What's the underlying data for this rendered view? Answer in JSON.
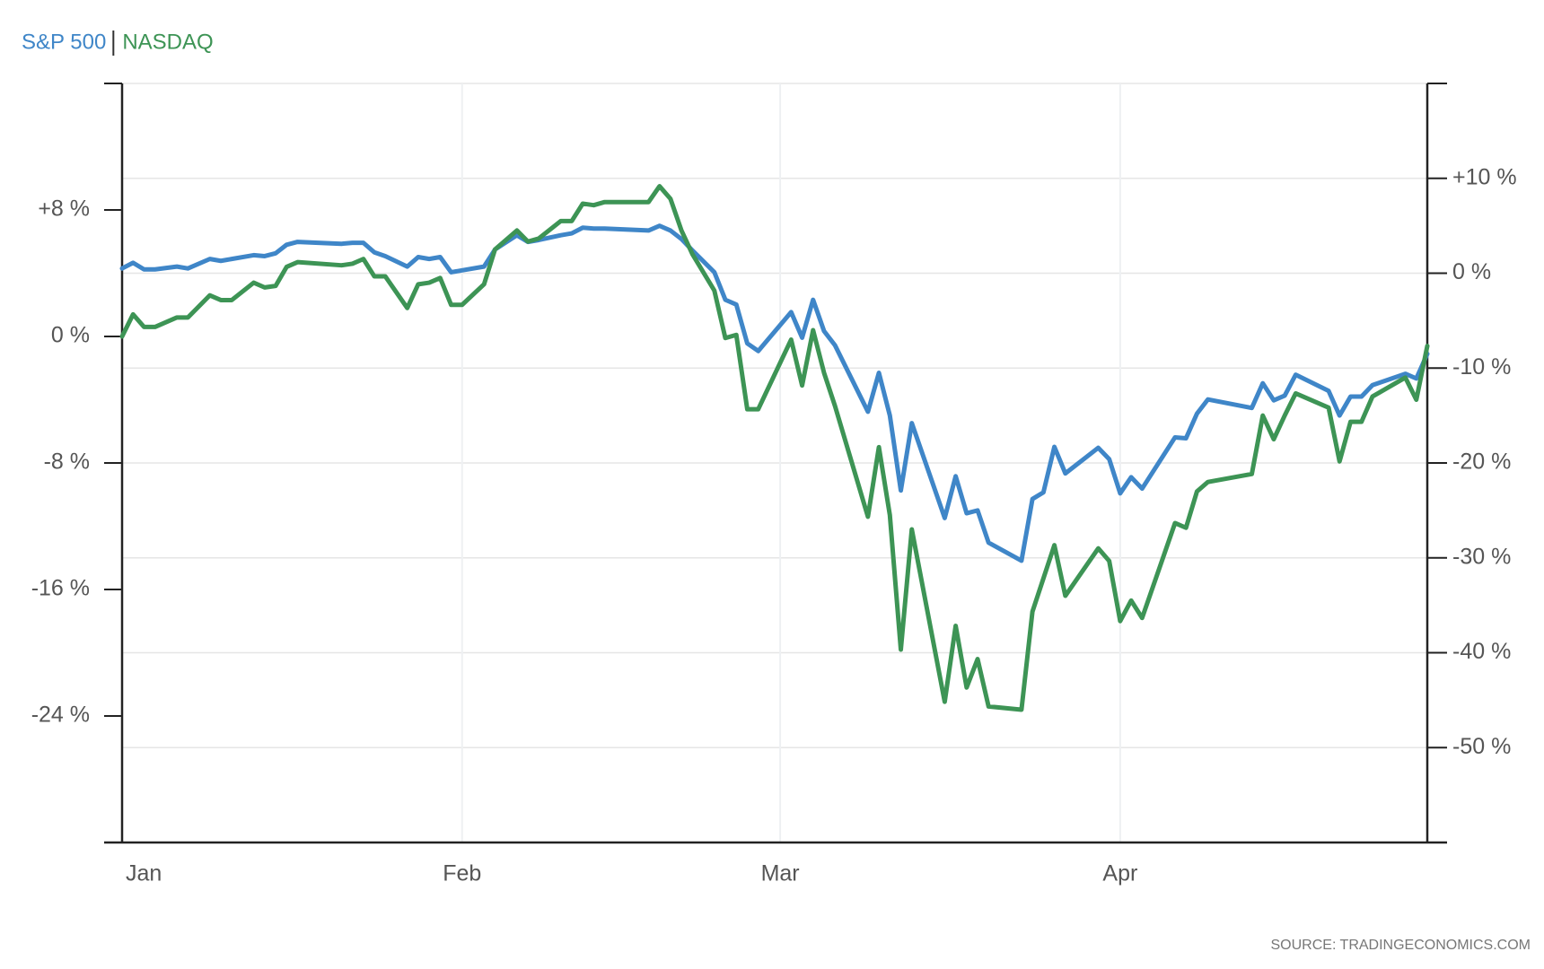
{
  "chart_data": {
    "type": "line",
    "source": "SOURCE: TRADINGECONOMICS.COM",
    "x": [
      0,
      1,
      2,
      3,
      5,
      6,
      8,
      9,
      10,
      12,
      13,
      14,
      15,
      16,
      20,
      21,
      22,
      23,
      24,
      26,
      27,
      28,
      29,
      30,
      31,
      33,
      34,
      36,
      37,
      38,
      40,
      41,
      42,
      43,
      44,
      48,
      49,
      50,
      51,
      52,
      54,
      55,
      56,
      57,
      58,
      61,
      62,
      63,
      64,
      65,
      68,
      69,
      70,
      71,
      72,
      75,
      76,
      77,
      78,
      79,
      82,
      83,
      84,
      85,
      86,
      89,
      90,
      91,
      92,
      93,
      96,
      97,
      98,
      99,
      103,
      104,
      105,
      106,
      107,
      110,
      111,
      112,
      113,
      114,
      117,
      118,
      119
    ],
    "xlim": [
      0,
      119
    ],
    "xticks": [
      {
        "value": 0,
        "label": "Jan"
      },
      {
        "value": 31,
        "label": "Feb"
      },
      {
        "value": 60,
        "label": "Mar"
      },
      {
        "value": 91,
        "label": "Apr"
      }
    ],
    "ylim": [
      -32,
      16
    ],
    "yticks": [
      {
        "value": 8,
        "label": "+8 %"
      },
      {
        "value": 0,
        "label": "0 %"
      },
      {
        "value": -8,
        "label": "-8 %"
      },
      {
        "value": -16,
        "label": "-16 %"
      },
      {
        "value": -24,
        "label": "-24 %"
      }
    ],
    "y2lim": [
      -60,
      20
    ],
    "y2ticks": [
      {
        "value": 10,
        "label": "+10 %"
      },
      {
        "value": 0,
        "label": "0 %"
      },
      {
        "value": -10,
        "label": "-10 %"
      },
      {
        "value": -20,
        "label": "-20 %"
      },
      {
        "value": -30,
        "label": "-30 %"
      },
      {
        "value": -40,
        "label": "-40 %"
      },
      {
        "value": -50,
        "label": "-50 %"
      }
    ],
    "grid": true,
    "series": [
      {
        "name": "S&P 500",
        "color": "#3f86c8",
        "axis": "y2",
        "values": [
          0.5,
          1.1,
          0.4,
          0.4,
          0.7,
          0.5,
          1.5,
          1.3,
          1.5,
          1.9,
          1.8,
          2.1,
          3.0,
          3.3,
          3.1,
          3.2,
          3.2,
          2.2,
          1.8,
          0.7,
          1.7,
          1.5,
          1.7,
          0.1,
          0.3,
          0.7,
          2.5,
          4.0,
          3.3,
          3.5,
          4.0,
          4.2,
          4.8,
          4.7,
          4.7,
          4.5,
          5.0,
          4.5,
          3.6,
          2.4,
          0.1,
          -2.8,
          -3.3,
          -7.4,
          -8.2,
          -4.1,
          -6.8,
          -2.8,
          -6.1,
          -7.6,
          -14.6,
          -10.5,
          -15.0,
          -22.9,
          -15.8,
          -25.8,
          -21.4,
          -25.3,
          -25.0,
          -28.4,
          -30.3,
          -23.8,
          -23.1,
          -18.3,
          -21.1,
          -18.4,
          -19.6,
          -23.2,
          -21.5,
          -22.7,
          -17.3,
          -17.4,
          -14.8,
          -13.3,
          -14.2,
          -11.6,
          -13.4,
          -12.9,
          -10.7,
          -12.4,
          -15.0,
          -13.0,
          -13.0,
          -11.8,
          -10.6,
          -11.1,
          -8.5
        ]
      },
      {
        "name": "NASDAQ",
        "color": "#3d9455",
        "values": [
          0.0,
          1.4,
          0.6,
          0.6,
          1.2,
          1.2,
          2.6,
          2.3,
          2.3,
          3.4,
          3.1,
          3.2,
          4.4,
          4.7,
          4.5,
          4.6,
          4.9,
          3.8,
          3.8,
          1.8,
          3.3,
          3.4,
          3.7,
          2.0,
          2.0,
          3.3,
          5.5,
          6.7,
          6.0,
          6.2,
          7.3,
          7.3,
          8.4,
          8.3,
          8.5,
          8.5,
          9.5,
          8.7,
          6.7,
          5.2,
          2.9,
          -0.1,
          0.1,
          -4.6,
          -4.6,
          -0.2,
          -3.1,
          0.4,
          -2.3,
          -4.4,
          -11.4,
          -7.0,
          -11.3,
          -19.8,
          -12.2,
          -23.1,
          -18.3,
          -22.2,
          -20.4,
          -23.4,
          -23.6,
          -17.4,
          -15.3,
          -13.2,
          -16.4,
          -13.4,
          -14.2,
          -18.0,
          -16.7,
          -17.8,
          -11.8,
          -12.1,
          -9.8,
          -9.2,
          -8.7,
          -5.0,
          -6.5,
          -5.0,
          -3.6,
          -4.5,
          -7.9,
          -5.4,
          -5.4,
          -3.8,
          -2.6,
          -4.0,
          -0.6
        ]
      }
    ]
  }
}
